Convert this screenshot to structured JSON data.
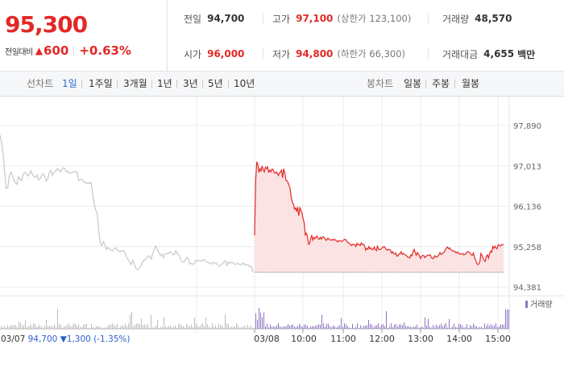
{
  "quote": {
    "price": "95,300",
    "change_label": "전일대비",
    "change_arrow": "▲",
    "change_value": "600",
    "change_percent": "+0.63%",
    "up_color": "#e22926"
  },
  "stats": {
    "prev_close": {
      "label": "전일",
      "value": "94,700"
    },
    "high": {
      "label": "고가",
      "value": "97,100",
      "sub": "(상한가 123,100)"
    },
    "volume": {
      "label": "거래량",
      "value": "48,570"
    },
    "open": {
      "label": "시가",
      "value": "96,000"
    },
    "low": {
      "label": "저가",
      "value": "94,800",
      "sub": "(하한가 66,300)"
    },
    "trade_amount": {
      "label": "거래대금",
      "value": "4,655",
      "unit": "백만"
    }
  },
  "tabs": {
    "line_label": "선차트",
    "line_tabs": [
      "1일",
      "1주일",
      "3개월",
      "1년",
      "3년",
      "5년",
      "10년"
    ],
    "line_active": "1일",
    "candle_label": "봉차트",
    "candle_tabs": [
      "일봉",
      "주봉",
      "월봉"
    ],
    "active_color": "#2b6cd4"
  },
  "chart_data": {
    "type": "line",
    "y_ticks": [
      "97,890",
      "97,013",
      "96,136",
      "95,258",
      "94,381"
    ],
    "ylim": [
      94381,
      97890
    ],
    "prev_close": 94700,
    "volume_legend": "거래량",
    "prev_day_info": {
      "date": "03/07",
      "close": "94,700",
      "arrow": "▼",
      "change": "1,300",
      "pct": "(-1.35%)"
    },
    "x_ticks": [
      "03/08",
      "10:00",
      "11:00",
      "12:00",
      "13:00",
      "14:00",
      "15:00"
    ],
    "colors": {
      "today_line": "#e22926",
      "today_fill": "#fbe3e3",
      "prev_line": "#c8c8c8",
      "volume": "#8f76c2"
    },
    "series": [
      {
        "name": "03/07",
        "values": [
          97680,
          97520,
          97290,
          96880,
          96520,
          96540,
          96800,
          96880,
          96810,
          96700,
          96650,
          96610,
          96780,
          96720,
          96690,
          96830,
          96870,
          96850,
          96790,
          96830,
          96900,
          96830,
          96780,
          96760,
          96810,
          96700,
          96730,
          96810,
          96840,
          96780,
          96680,
          96730,
          96870,
          96910,
          96810,
          96870,
          96890,
          96950,
          96930,
          96880,
          96920,
          96970,
          96950,
          96880,
          96900,
          96850,
          96860,
          96870,
          96880,
          96890,
          96870,
          96690,
          96710,
          96720,
          96680,
          96660,
          96630,
          96650,
          96620,
          96650,
          96410,
          96180,
          96060,
          95980,
          95620,
          95330,
          95280,
          95370,
          95300,
          95200,
          95240,
          95200,
          95180,
          95170,
          95220,
          95230,
          95180,
          95160,
          95150,
          95170,
          95170,
          95120,
          95030,
          94980,
          94930,
          94870,
          94960,
          94880,
          94790,
          94760,
          94780,
          94820,
          94890,
          94960,
          94970,
          95020,
          95060,
          95050,
          94990,
          95110,
          95210,
          95270,
          95180,
          95130,
          95060,
          95100,
          95020,
          95100,
          95110,
          95100,
          95150,
          95130,
          95090,
          95080,
          95170,
          95100,
          95080,
          94990,
          94930,
          94920,
          94960,
          95020,
          94990,
          94880,
          94900,
          94870,
          94900,
          94960,
          94940,
          94960,
          94950,
          94950,
          94980,
          94960,
          94920,
          94920,
          94890,
          94880,
          94920,
          94900,
          94910,
          94860,
          94830,
          94860,
          94880,
          94920,
          94950,
          94850,
          94930,
          94890,
          94920,
          94910,
          94880,
          94870,
          94900,
          94870,
          94870,
          94880,
          94900,
          94850,
          94870,
          94860,
          94820,
          94830,
          94700
        ]
      },
      {
        "name": "03/08",
        "values": [
          95500,
          96700,
          97100,
          97040,
          96870,
          96950,
          96900,
          97010,
          96930,
          96880,
          96980,
          96950,
          96990,
          96880,
          96920,
          96880,
          96940,
          96940,
          96870,
          96850,
          96880,
          96860,
          96800,
          96850,
          96880,
          96920,
          96750,
          96950,
          96860,
          96700,
          96690,
          96650,
          96590,
          96520,
          96320,
          96220,
          96180,
          96070,
          96100,
          96030,
          96120,
          95930,
          96100,
          96050,
          95980,
          95860,
          95770,
          95510,
          95550,
          95490,
          95310,
          95320,
          95440,
          95500,
          95400,
          95460,
          95430,
          95470,
          95490,
          95430,
          95420,
          95460,
          95420,
          95470,
          95460,
          95450,
          95400,
          95400,
          95440,
          95420,
          95410,
          95400,
          95400,
          95420,
          95400,
          95410,
          95380,
          95360,
          95390,
          95380,
          95380,
          95370,
          95390,
          95410,
          95420,
          95400,
          95360,
          95340,
          95330,
          95300,
          95280,
          95310,
          95300,
          95300,
          95260,
          95330,
          95300,
          95300,
          95280,
          95340,
          95300,
          95310,
          95280,
          95180,
          95220,
          95200,
          95260,
          95210,
          95230,
          95200,
          95190,
          95250,
          95200,
          95170,
          95280,
          95200,
          95190,
          95200,
          95230,
          95240,
          95260,
          95240,
          95200,
          95180,
          95200,
          95190,
          95190,
          95120,
          95150,
          95100,
          95100,
          95120,
          95050,
          95060,
          95100,
          95100,
          95150,
          95090,
          95110,
          95090,
          95080,
          95060,
          95030,
          95030,
          95010,
          95080,
          95060,
          95140,
          95200,
          95130,
          95070,
          95130,
          95100,
          95050,
          95000,
          95050,
          95070,
          95060,
          95020,
          95050,
          95060,
          95080,
          95070,
          95080,
          95020,
          95000,
          95000,
          95060,
          95040,
          95030,
          95050,
          95080,
          95130,
          95090,
          95100,
          95130,
          95140,
          95200,
          95230,
          95250,
          95210,
          95230,
          95190,
          95180,
          95160,
          95160,
          95150,
          95120,
          95140,
          95130,
          95090,
          95100,
          95100,
          95110,
          95080,
          95090,
          95100,
          95140,
          95150,
          95140,
          95120,
          95080,
          95070,
          95120,
          95030,
          94970,
          94900,
          94870,
          94880,
          94930,
          95110,
          95070,
          95000,
          94960,
          94940,
          95050,
          95080,
          95010,
          95100,
          95160,
          95140,
          95260,
          95220,
          95270,
          95230,
          95210,
          95300,
          95280,
          95270,
          95300,
          95300,
          95300
        ]
      }
    ]
  }
}
